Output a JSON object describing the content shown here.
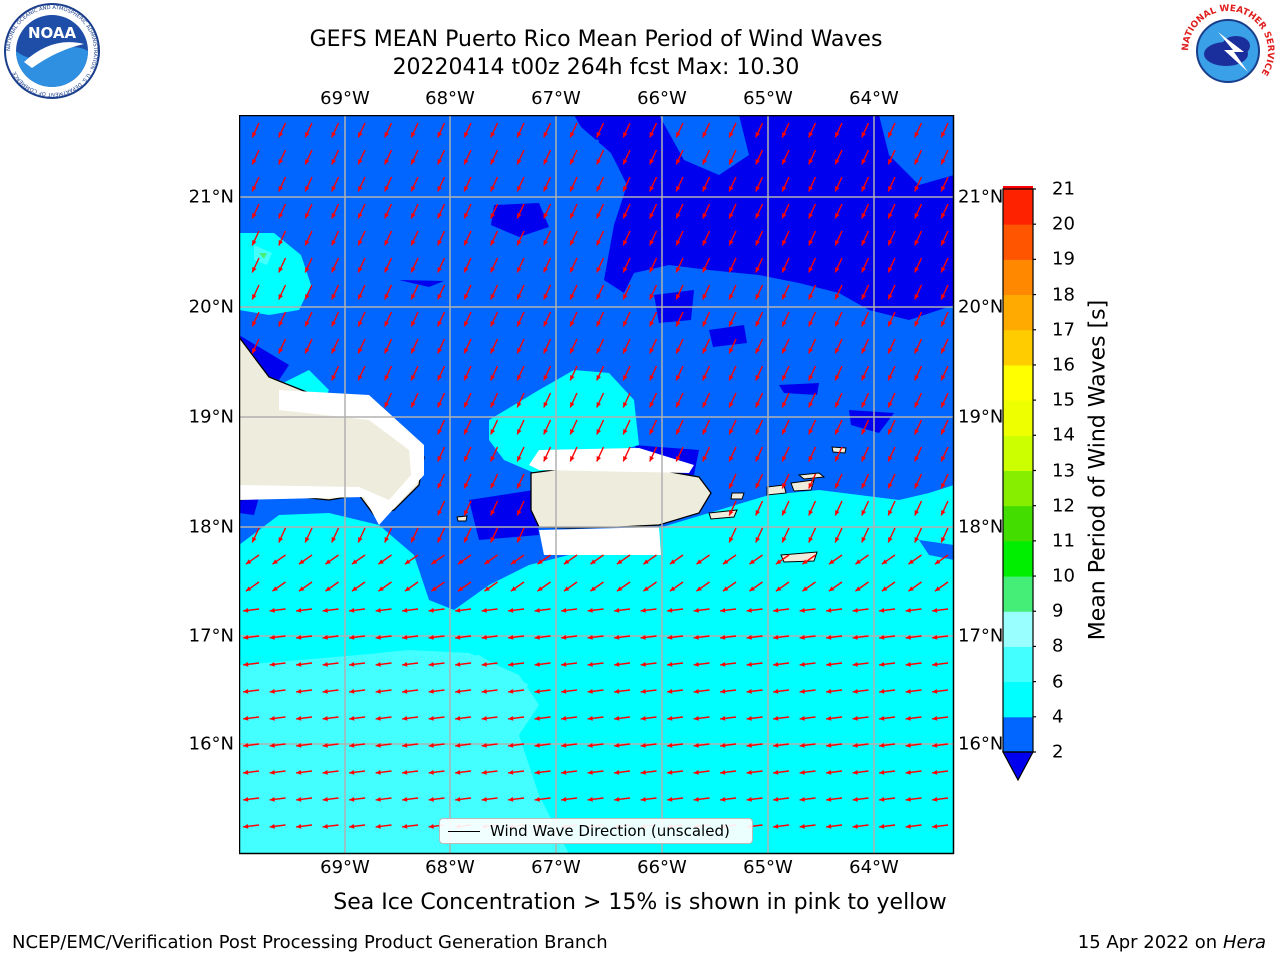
{
  "title": {
    "line1": "GEFS MEAN Puerto Rico Mean Period of Wind Waves",
    "line2": "20220414 t00z 264h fcst   Max: 10.30"
  },
  "logos": {
    "left": {
      "name": "noaa-logo",
      "text": "NOAA",
      "ring_text": "NATIONAL OCEANIC AND ATMOSPHERIC ADMINISTRATION · U.S. DEPARTMENT OF COMMERCE"
    },
    "right": {
      "name": "nws-logo",
      "ring_text": "NATIONAL WEATHER SERVICE"
    }
  },
  "map": {
    "lon_labels": [
      "69°W",
      "68°W",
      "67°W",
      "66°W",
      "65°W",
      "64°W"
    ],
    "lat_labels": [
      "21°N",
      "20°N",
      "19°N",
      "18°N",
      "17°N",
      "16°N"
    ],
    "legend": "Wind Wave Direction (unscaled)",
    "colors": {
      "land": "#eeecdc",
      "band_2_4": "#0066ff",
      "band_under_2": "#0000ee",
      "band_4_6": "#00ffff",
      "band_6_8": "#44ffff",
      "arrow": "#ff0000"
    }
  },
  "colorbar": {
    "label": "Mean Period of Wind Waves [s]",
    "ticks": [
      "2",
      "4",
      "6",
      "8",
      "9",
      "10",
      "11",
      "12",
      "13",
      "14",
      "15",
      "16",
      "17",
      "18",
      "19",
      "20",
      "21"
    ],
    "colors": [
      "#0066ff",
      "#00ffff",
      "#44ffff",
      "#99ffff",
      "#44ee77",
      "#00ee00",
      "#44dd00",
      "#88ee00",
      "#ccff00",
      "#eeff00",
      "#ffff00",
      "#ffcc00",
      "#ffaa00",
      "#ff8800",
      "#ff5500",
      "#ff2200",
      "#ff0000"
    ],
    "under_color": "#0000ee"
  },
  "caption": "Sea Ice Concentration > 15% is shown in pink to yellow",
  "footer": {
    "left": "NCEP/EMC/Verification Post Processing Product Generation Branch",
    "right_date": "15 Apr 2022 on ",
    "right_host": "Hera"
  }
}
